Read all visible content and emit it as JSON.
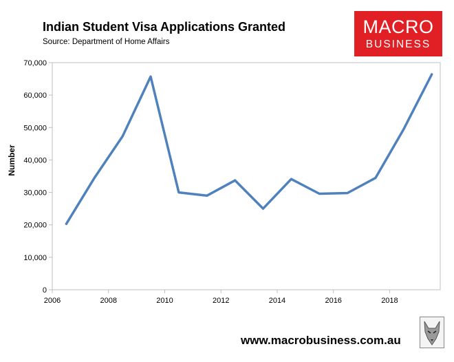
{
  "header": {
    "title": "Indian Student Visa Applications Granted",
    "subtitle": "Source: Department of Home Affairs"
  },
  "logo": {
    "line1": "MACRO",
    "line2": "BUSINESS",
    "color": "#e02025"
  },
  "footer": {
    "url": "www.macrobusiness.com.au"
  },
  "chart_data": {
    "type": "line",
    "title": "Indian Student Visa Applications Granted",
    "ylabel": "Number",
    "xlabel": "",
    "xlim": [
      2006,
      2019.8
    ],
    "ylim": [
      0,
      70000
    ],
    "xticks": [
      2006,
      2008,
      2010,
      2012,
      2014,
      2016,
      2018
    ],
    "xtick_labels": [
      "2006",
      "2008",
      "2010",
      "2012",
      "2014",
      "2016",
      "2018"
    ],
    "yticks": [
      0,
      10000,
      20000,
      30000,
      40000,
      50000,
      60000,
      70000
    ],
    "ytick_labels": [
      "0",
      "10,000",
      "20,000",
      "30,000",
      "40,000",
      "50,000",
      "60,000",
      "70,000"
    ],
    "grid": false,
    "legend": false,
    "series": [
      {
        "color": "#4f81bd",
        "x": [
          2006.5,
          2007.5,
          2008.5,
          2009.5,
          2010.5,
          2011.5,
          2012.5,
          2013.5,
          2014.5,
          2015.5,
          2016.5,
          2017.5,
          2018.5,
          2019.5
        ],
        "y": [
          20300,
          34500,
          47300,
          65700,
          30000,
          29000,
          33700,
          25000,
          34100,
          29600,
          29800,
          34500,
          49500,
          66400
        ]
      }
    ]
  }
}
